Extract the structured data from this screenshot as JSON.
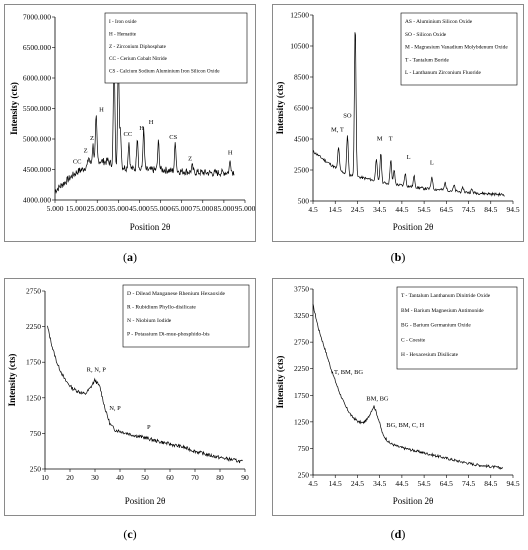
{
  "chart_data": [
    {
      "id": "a",
      "type": "line",
      "caption": "a",
      "xlabel": "Position 2θ",
      "ylabel": "Intensity (cts)",
      "xlim": [
        5,
        95
      ],
      "ylim": [
        4000,
        7000
      ],
      "xticks": [
        "5.000",
        "15.000",
        "25.000",
        "35.000",
        "45.000",
        "55.000",
        "65.000",
        "75.000",
        "85.000",
        "95.000"
      ],
      "yticks": [
        "4000.000",
        "4500.000",
        "5000.000",
        "5500.000",
        "6000.000",
        "6500.000",
        "7000.000"
      ],
      "legend": [
        "I - Iron oxide",
        "H - Hematite",
        "Z - Zirconium Diphosphate",
        "CC - Cerium Cobalt Nitride",
        "CS - Calcium Sodium Aluminium Iron Silicon Oxide"
      ],
      "series": [
        {
          "baseline": [
            [
              5,
              4150
            ],
            [
              10,
              4300
            ],
            [
              15,
              4450
            ],
            [
              20,
              4550
            ],
            [
              25,
              4650
            ],
            [
              30,
              4620
            ],
            [
              35,
              4550
            ],
            [
              40,
              4520
            ],
            [
              45,
              4500
            ],
            [
              50,
              4490
            ],
            [
              55,
              4500
            ],
            [
              60,
              4480
            ],
            [
              65,
              4470
            ],
            [
              70,
              4460
            ],
            [
              75,
              4450
            ],
            [
              80,
              4440
            ],
            [
              85,
              4450
            ],
            [
              90,
              4460
            ]
          ],
          "peaks": [
            [
              18,
              4500
            ],
            [
              21,
              4700
            ],
            [
              23,
              4900
            ],
            [
              24.5,
              5350
            ],
            [
              30,
              4650
            ],
            [
              33,
              6400
            ],
            [
              35,
              6300
            ],
            [
              36,
              5150
            ],
            [
              40,
              4950
            ],
            [
              44,
              5050
            ],
            [
              47,
              5150
            ],
            [
              54,
              4950
            ],
            [
              62,
              4950
            ],
            [
              70,
              4550
            ],
            [
              88,
              4650
            ]
          ],
          "noise": 60
        }
      ],
      "annotations": [
        {
          "text": "CC",
          "x": 15.5,
          "y": 4600
        },
        {
          "text": "Z",
          "x": 19.5,
          "y": 4780
        },
        {
          "text": "Z",
          "x": 22.5,
          "y": 4980
        },
        {
          "text": "H",
          "x": 27,
          "y": 5450
        },
        {
          "text": "I",
          "x": 35,
          "y": 6550
        },
        {
          "text": "CC",
          "x": 39.5,
          "y": 5050
        },
        {
          "text": "H",
          "x": 46,
          "y": 5150
        },
        {
          "text": "H",
          "x": 50.5,
          "y": 5250
        },
        {
          "text": "CS",
          "x": 61,
          "y": 5000
        },
        {
          "text": "Z",
          "x": 69,
          "y": 4650
        },
        {
          "text": "H",
          "x": 88,
          "y": 4750
        }
      ]
    },
    {
      "id": "b",
      "type": "line",
      "caption": "b",
      "xlabel": "Position 2θ",
      "ylabel": "Intensity (cts)",
      "xlim": [
        4.5,
        94.5
      ],
      "ylim": [
        500,
        12500
      ],
      "xticks": [
        "4.5",
        "14.5",
        "24.5",
        "34.5",
        "44.5",
        "54.5",
        "64.5",
        "74.5",
        "84.5",
        "94.5"
      ],
      "yticks": [
        "500",
        "2500",
        "4500",
        "6500",
        "8500",
        "10500",
        "12500"
      ],
      "legend": [
        "AS - Aluminium Silicon Oxide",
        "SO - Silicon Oxide",
        "M - Magnesium Vanadium Molybdenum Oxide",
        "T - Tantalum Boride",
        "L - Lanthanum Zirconium Fluoride"
      ],
      "series": [
        {
          "baseline": [
            [
              4.5,
              3700
            ],
            [
              10,
              3100
            ],
            [
              15,
              2600
            ],
            [
              20,
              2200
            ],
            [
              25,
              2050
            ],
            [
              30,
              1900
            ],
            [
              35,
              1700
            ],
            [
              40,
              1600
            ],
            [
              45,
              1500
            ],
            [
              50,
              1400
            ],
            [
              55,
              1300
            ],
            [
              60,
              1250
            ],
            [
              65,
              1200
            ],
            [
              70,
              1100
            ],
            [
              75,
              1050
            ],
            [
              80,
              1000
            ],
            [
              85,
              950
            ],
            [
              91,
              900
            ]
          ],
          "peaks": [
            [
              16,
              4000
            ],
            [
              20,
              4800
            ],
            [
              23.5,
              12000
            ],
            [
              33,
              3300
            ],
            [
              35,
              3600
            ],
            [
              39.5,
              3200
            ],
            [
              41,
              2500
            ],
            [
              46,
              2300
            ],
            [
              50,
              2100
            ],
            [
              58,
              2100
            ],
            [
              64,
              1700
            ],
            [
              68,
              1500
            ],
            [
              72,
              1350
            ],
            [
              76,
              1250
            ]
          ],
          "noise": 90
        }
      ],
      "annotations": [
        {
          "text": "M, T",
          "x": 15.5,
          "y": 5000
        },
        {
          "text": "SO",
          "x": 20,
          "y": 5900
        },
        {
          "text": "M",
          "x": 34.5,
          "y": 4400
        },
        {
          "text": "T",
          "x": 39.5,
          "y": 4400
        },
        {
          "text": "L",
          "x": 47.5,
          "y": 3200
        },
        {
          "text": "L",
          "x": 58,
          "y": 2850
        }
      ]
    },
    {
      "id": "c",
      "type": "line",
      "caption": "c",
      "xlabel": "Position 2θ",
      "ylabel": "Intensity (cts)",
      "xlim": [
        10,
        90
      ],
      "ylim": [
        250,
        2750
      ],
      "xticks": [
        "10",
        "20",
        "30",
        "40",
        "50",
        "60",
        "70",
        "80",
        "90"
      ],
      "yticks": [
        "250",
        "750",
        "1250",
        "1750",
        "2250",
        "2750"
      ],
      "legend": [
        "D - Dilead Manganese Rhenium Hexaoxide",
        "R - Rubidium Phyllo-disilicate",
        "N - Niobium Iodide",
        "P - Potassium Di-mue-phosphido-bis"
      ],
      "series": [
        {
          "baseline": [
            [
              11,
              2250
            ],
            [
              13,
              1950
            ],
            [
              15,
              1720
            ],
            [
              18,
              1500
            ],
            [
              21,
              1380
            ],
            [
              24,
              1330
            ],
            [
              26,
              1300
            ],
            [
              28,
              1380
            ],
            [
              30,
              1500
            ],
            [
              32,
              1400
            ],
            [
              34,
              1100
            ],
            [
              36,
              880
            ],
            [
              38,
              800
            ],
            [
              42,
              760
            ],
            [
              46,
              720
            ],
            [
              50,
              690
            ],
            [
              55,
              640
            ],
            [
              60,
              600
            ],
            [
              65,
              560
            ],
            [
              70,
              500
            ],
            [
              75,
              450
            ],
            [
              80,
              410
            ],
            [
              85,
              380
            ],
            [
              89,
              350
            ]
          ],
          "peaks": [],
          "noise": 25
        }
      ],
      "annotations": [
        {
          "text": "R, N, P",
          "x": 30.5,
          "y": 1620
        },
        {
          "text": "N, P",
          "x": 38,
          "y": 1080
        },
        {
          "text": "P",
          "x": 51.5,
          "y": 810
        }
      ]
    },
    {
      "id": "d",
      "type": "line",
      "caption": "d",
      "xlabel": "Position 2θ",
      "ylabel": "Intensity (cts)",
      "xlim": [
        4.5,
        94.5
      ],
      "ylim": [
        250,
        3750
      ],
      "xticks": [
        "4.5",
        "14.5",
        "24.5",
        "34.5",
        "44.5",
        "54.5",
        "64.5",
        "74.5",
        "84.5",
        "94.5"
      ],
      "yticks": [
        "250",
        "750",
        "1250",
        "1750",
        "2250",
        "2750",
        "3250",
        "3750"
      ],
      "legend": [
        "T - Tantalum Lanthanum Dinitride Oxide",
        "BM - Barium Magnesium Antimonide",
        "BG - Barium Germanium Oxide",
        "C - Coesite",
        "H - Hexacesium Disilicate"
      ],
      "series": [
        {
          "baseline": [
            [
              4.5,
              3450
            ],
            [
              7,
              3000
            ],
            [
              10,
              2600
            ],
            [
              13,
              2200
            ],
            [
              16,
              1850
            ],
            [
              19,
              1550
            ],
            [
              22,
              1350
            ],
            [
              25,
              1250
            ],
            [
              27,
              1230
            ],
            [
              29,
              1300
            ],
            [
              31,
              1480
            ],
            [
              32,
              1550
            ],
            [
              34,
              1300
            ],
            [
              36,
              1000
            ],
            [
              39,
              850
            ],
            [
              43,
              780
            ],
            [
              48,
              730
            ],
            [
              55,
              660
            ],
            [
              62,
              590
            ],
            [
              70,
              510
            ],
            [
              77,
              450
            ],
            [
              84,
              410
            ],
            [
              90,
              380
            ]
          ],
          "peaks": [],
          "noise": 25
        }
      ],
      "annotations": [
        {
          "text": "T, BM, BG",
          "x": 20.5,
          "y": 2150
        },
        {
          "text": "BM, BG",
          "x": 33.5,
          "y": 1650
        },
        {
          "text": "BG, BM, C, H",
          "x": 46,
          "y": 1150
        }
      ]
    }
  ]
}
